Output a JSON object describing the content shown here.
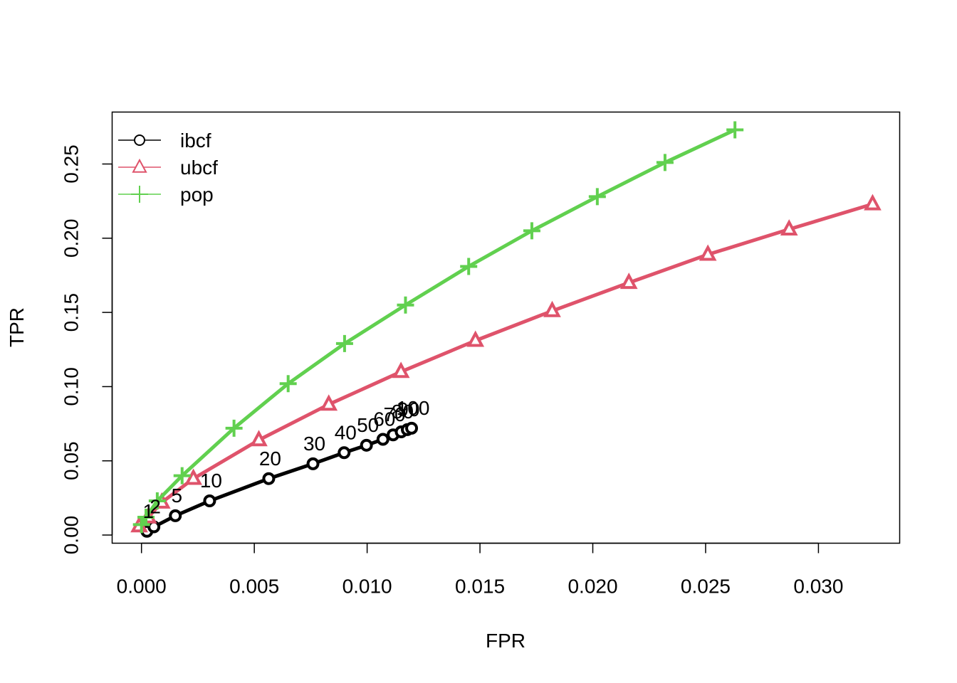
{
  "chart_data": {
    "type": "line",
    "xlabel": "FPR",
    "ylabel": "TPR",
    "xlim": [
      -0.0013,
      0.0336
    ],
    "ylim": [
      -0.0055,
      0.285
    ],
    "x_ticks": [
      "0.000",
      "0.005",
      "0.010",
      "0.015",
      "0.020",
      "0.025",
      "0.030"
    ],
    "y_ticks": [
      "0.00",
      "0.05",
      "0.10",
      "0.15",
      "0.20",
      "0.25"
    ],
    "legend_position": "top-left",
    "series": [
      {
        "name": "ibcf",
        "color": "#000000",
        "marker": "circle",
        "x": [
          0.00024,
          0.00055,
          0.0015,
          0.00302,
          0.00564,
          0.0076,
          0.00898,
          0.00997,
          0.0107,
          0.01115,
          0.01151,
          0.01178,
          0.01197
        ],
        "y": [
          0.0025,
          0.0055,
          0.013,
          0.023,
          0.038,
          0.048,
          0.0555,
          0.0605,
          0.0645,
          0.0675,
          0.0695,
          0.071,
          0.072
        ],
        "point_labels": [
          "1",
          "2",
          "5",
          "10",
          "20",
          "30",
          "40",
          "50",
          "60",
          "70",
          "80",
          "90",
          "100"
        ]
      },
      {
        "name": "ubcf",
        "color": "#DF536B",
        "marker": "triangle",
        "x": [
          -0.0001,
          0.0003,
          0.0009,
          0.0023,
          0.0052,
          0.0083,
          0.0115,
          0.0148,
          0.0182,
          0.0216,
          0.0251,
          0.0287,
          0.0324
        ],
        "y": [
          0.006,
          0.012,
          0.022,
          0.038,
          0.064,
          0.088,
          0.11,
          0.131,
          0.151,
          0.17,
          0.189,
          0.206,
          0.223
        ]
      },
      {
        "name": "pop",
        "color": "#61D04F",
        "marker": "plus",
        "x": [
          0.0,
          0.0002,
          0.0007,
          0.0018,
          0.0041,
          0.0065,
          0.009,
          0.0117,
          0.0145,
          0.0173,
          0.0202,
          0.0232,
          0.0263
        ],
        "y": [
          0.007,
          0.012,
          0.023,
          0.04,
          0.072,
          0.102,
          0.129,
          0.155,
          0.181,
          0.205,
          0.228,
          0.251,
          0.273
        ]
      }
    ]
  }
}
